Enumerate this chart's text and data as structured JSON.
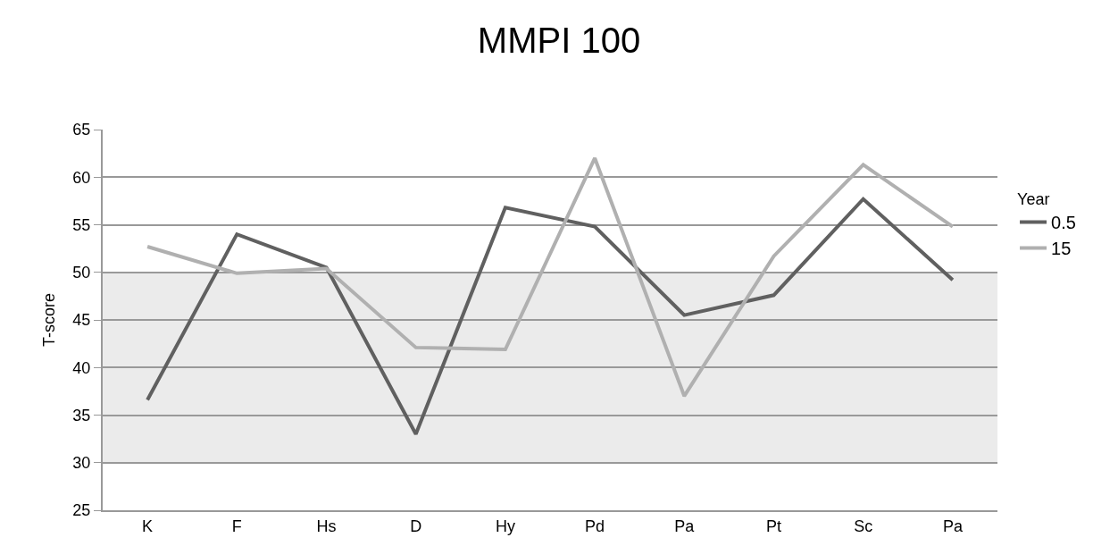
{
  "chart_data": {
    "type": "line",
    "title": "MMPI 100",
    "ylabel": "T-score",
    "legend_title": "Year",
    "categories": [
      "K",
      "F",
      "Hs",
      "D",
      "Hy",
      "Pd",
      "Pa",
      "Pt",
      "Sc",
      "Pa"
    ],
    "series": [
      {
        "name": "0.5",
        "color": "#606060",
        "values": [
          36.6,
          54,
          50.5,
          33,
          56.8,
          54.8,
          45.5,
          47.6,
          57.7,
          49.2
        ]
      },
      {
        "name": "15",
        "color": "#b0b0b0",
        "values": [
          52.7,
          49.9,
          50.4,
          42.1,
          41.9,
          62,
          37,
          51.7,
          61.3,
          54.8
        ]
      }
    ],
    "ylim": [
      25,
      65
    ],
    "yticks": [
      25,
      30,
      35,
      40,
      45,
      50,
      55,
      60,
      65
    ],
    "bands": [
      {
        "axis": "y",
        "from": 30,
        "to": 50,
        "color": "#ebebeb"
      }
    ],
    "grid": "y",
    "legend": "right",
    "marker": "none",
    "line_style": "solid"
  }
}
